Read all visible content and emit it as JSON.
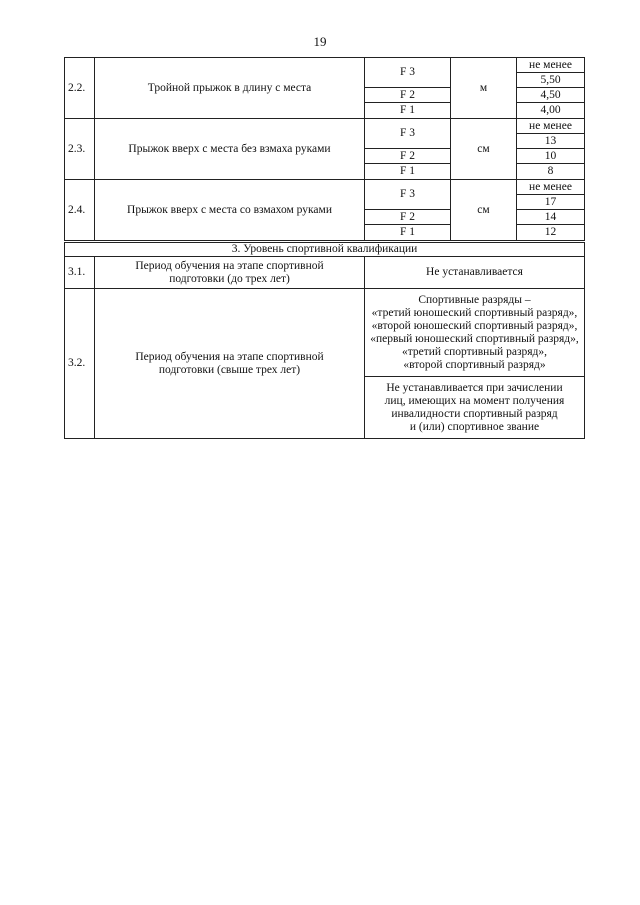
{
  "page_number": "19",
  "rows": [
    {
      "num": "2.2.",
      "name": "Тройной прыжок в длину с места",
      "unit": "м",
      "qualifier": "не менее",
      "groups": [
        {
          "label": "F 3",
          "value": "5,50"
        },
        {
          "label": "F 2",
          "value": "4,50"
        },
        {
          "label": "F 1",
          "value": "4,00"
        }
      ]
    },
    {
      "num": "2.3.",
      "name": "Прыжок вверх с места без взмаха руками",
      "unit": "см",
      "qualifier": "не менее",
      "groups": [
        {
          "label": "F 3",
          "value": "13"
        },
        {
          "label": "F 2",
          "value": "10"
        },
        {
          "label": "F 1",
          "value": "8"
        }
      ]
    },
    {
      "num": "2.4.",
      "name": "Прыжок вверх с места со взмахом руками",
      "unit": "см",
      "qualifier": "не менее",
      "groups": [
        {
          "label": "F 3",
          "value": "17"
        },
        {
          "label": "F 2",
          "value": "14"
        },
        {
          "label": "F 1",
          "value": "12"
        }
      ]
    }
  ],
  "section3": {
    "title": "3.   Уровень спортивной квалификации",
    "rows": [
      {
        "num": "3.1.",
        "name": "Период обучения на этапе спортивной подготовки (до трех лет)",
        "value": "Не устанавливается"
      },
      {
        "num": "3.2.",
        "name": "Период обучения на этапе спортивной подготовки (свыше трех лет)",
        "value_lines": [
          "Спортивные разряды –",
          "«третий юношеский спортивный разряд»,",
          "«второй юношеский спортивный разряд»,",
          "«первый юношеский спортивный разряд»,",
          "«третий спортивный разряд»,",
          "«второй спортивный разряд»"
        ],
        "note_lines": [
          "Не устанавливается при зачислении",
          "лиц, имеющих на момент получения",
          "инвалидности спортивный разряд",
          "и (или) спортивное звание"
        ]
      }
    ]
  }
}
